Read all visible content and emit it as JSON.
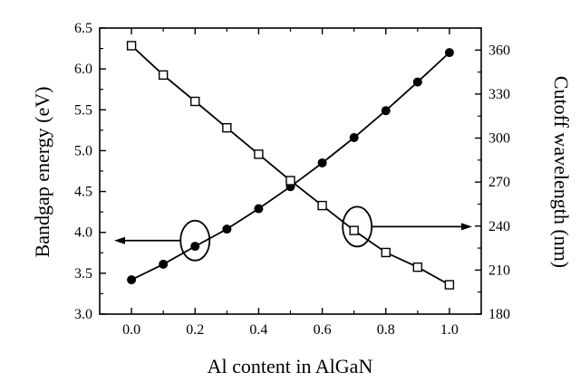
{
  "chart_data": {
    "type": "line",
    "title": "",
    "xlabel": "Al content in AlGaN",
    "ylabel": "Bandgap energy (eV)",
    "y2label": "Cutoff wavelength (nm)",
    "xlim": [
      -0.1,
      1.1
    ],
    "ylim": [
      3.0,
      6.5
    ],
    "y2lim": [
      180,
      375
    ],
    "x_ticks": [
      "0.0",
      "0.2",
      "0.4",
      "0.6",
      "0.8",
      "1.0"
    ],
    "y_ticks": [
      "3.0",
      "3.5",
      "4.0",
      "4.5",
      "5.0",
      "5.5",
      "6.0",
      "6.5"
    ],
    "y2_ticks": [
      "180",
      "210",
      "240",
      "270",
      "300",
      "330",
      "360"
    ],
    "grid": false,
    "series": [
      {
        "axis": "left",
        "marker": "filled-circle",
        "x": [
          0.0,
          0.1,
          0.2,
          0.3,
          0.4,
          0.5,
          0.6,
          0.7,
          0.8,
          0.9,
          1.0
        ],
        "values": [
          3.42,
          3.61,
          3.83,
          4.04,
          4.29,
          4.56,
          4.85,
          5.16,
          5.49,
          5.84,
          6.2
        ]
      },
      {
        "axis": "right",
        "marker": "open-square",
        "x": [
          0.0,
          0.1,
          0.2,
          0.3,
          0.4,
          0.5,
          0.6,
          0.7,
          0.8,
          0.9,
          1.0
        ],
        "values": [
          363,
          343,
          325,
          307,
          289,
          271,
          254,
          237,
          222,
          212,
          200
        ]
      }
    ],
    "annotations": [
      {
        "type": "ellipse-arrow",
        "at_x": 0.2,
        "at_y": 3.9,
        "axis": "left",
        "direction": "left"
      },
      {
        "type": "ellipse-arrow",
        "at_x": 0.71,
        "at_y": 4.07,
        "axis": "left",
        "direction": "right"
      }
    ]
  }
}
